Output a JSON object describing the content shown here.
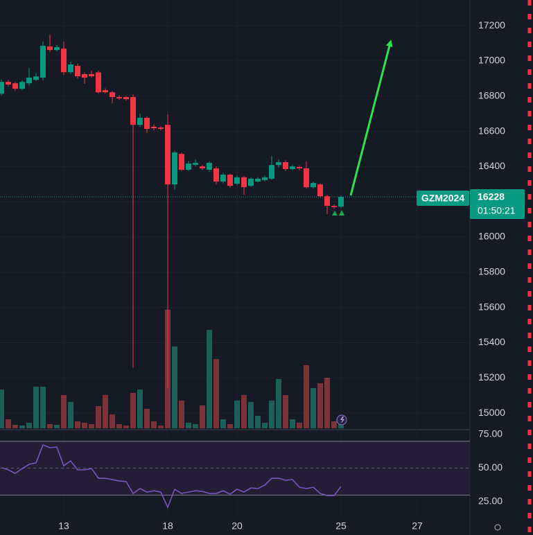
{
  "chart_data": [
    {
      "type": "candlestick",
      "symbol": "GZM2024",
      "last_price": 16228,
      "countdown": "01:50:21",
      "up_color": "#089981",
      "down_color": "#f23645",
      "volume_up_color": "#1d5f59",
      "volume_down_color": "#7c3239",
      "x": [
        0,
        1,
        2,
        3,
        4,
        5,
        6,
        7,
        8,
        9,
        10,
        11,
        12,
        13,
        14,
        15,
        16,
        17,
        18,
        19,
        20,
        21,
        22,
        23,
        24,
        25,
        26,
        27,
        28,
        29,
        30,
        31,
        32,
        33,
        34,
        35,
        36,
        37,
        38,
        39,
        40,
        41,
        42,
        43,
        44,
        45,
        46,
        47,
        48,
        49
      ],
      "open": [
        16814,
        16881,
        16873,
        16842,
        16873,
        16893,
        16905,
        17082,
        17062,
        17070,
        16936,
        16972,
        16925,
        16925,
        16935,
        16834,
        16822,
        16795,
        16795,
        16795,
        16637,
        16677,
        16626,
        16622,
        16637,
        16299,
        16472,
        16382,
        16410,
        16401,
        16382,
        16390,
        16315,
        16354,
        16303,
        16339,
        16291,
        16315,
        16323,
        16331,
        16409,
        16425,
        16386,
        16398,
        16390,
        16283,
        16299,
        16232,
        16177,
        16173
      ],
      "high": [
        16893,
        16890,
        16880,
        16890,
        16960,
        16930,
        17110,
        17150,
        17090,
        17110,
        16995,
        16985,
        16935,
        16945,
        16945,
        16845,
        16830,
        16805,
        16800,
        16810,
        16700,
        16685,
        16640,
        16630,
        16696,
        16490,
        16480,
        16430,
        16440,
        16410,
        16430,
        16400,
        16365,
        16360,
        16350,
        16345,
        16340,
        16340,
        16350,
        16460,
        16440,
        16435,
        16410,
        16405,
        16430,
        16315,
        16305,
        16240,
        16185,
        16235
      ],
      "low": [
        16806,
        16855,
        16830,
        16835,
        16860,
        16885,
        16890,
        17050,
        17055,
        16920,
        16925,
        16900,
        16870,
        16905,
        16815,
        16815,
        16760,
        16780,
        16775,
        15260,
        16625,
        16590,
        16605,
        16605,
        15142,
        16270,
        16375,
        16375,
        16400,
        16380,
        16370,
        16300,
        16305,
        16280,
        16295,
        16240,
        16285,
        16310,
        16315,
        16325,
        16395,
        16375,
        16380,
        16380,
        16275,
        16275,
        16225,
        16130,
        16160,
        16165
      ],
      "close": [
        16881,
        16866,
        16842,
        16881,
        16905,
        16912,
        17086,
        17062,
        17078,
        16936,
        16980,
        16913,
        16905,
        16913,
        16822,
        16822,
        16795,
        16787,
        16783,
        16637,
        16677,
        16614,
        16618,
        16614,
        16299,
        16480,
        16382,
        16417,
        16421,
        16390,
        16421,
        16315,
        16354,
        16291,
        16339,
        16283,
        16331,
        16331,
        16339,
        16409,
        16425,
        16386,
        16401,
        16390,
        16283,
        16307,
        16232,
        16177,
        16170,
        16228
      ],
      "volume": [
        56,
        13,
        5,
        4,
        8,
        60,
        60,
        6,
        5,
        48,
        38,
        10,
        8,
        6,
        32,
        48,
        20,
        6,
        4,
        51,
        56,
        28,
        10,
        4,
        171,
        118,
        40,
        8,
        6,
        33,
        142,
        100,
        13,
        6,
        40,
        48,
        38,
        18,
        8,
        40,
        71,
        48,
        13,
        8,
        91,
        58,
        65,
        73,
        10,
        6
      ],
      "volume_lim": [
        0,
        618
      ],
      "xlim": [
        -0.2,
        67.6
      ],
      "ylim": [
        14914,
        17346
      ],
      "yticks": [
        15000,
        15200,
        15400,
        15600,
        15800,
        16000,
        16200,
        16400,
        16600,
        16800,
        17000,
        17200
      ],
      "grid": true
    },
    {
      "type": "line",
      "color": "#7e57c2",
      "x": [
        0,
        1,
        2,
        3,
        4,
        5,
        6,
        7,
        8,
        9,
        10,
        11,
        12,
        13,
        14,
        15,
        16,
        17,
        18,
        19,
        20,
        21,
        22,
        23,
        24,
        25,
        26,
        27,
        28,
        29,
        30,
        31,
        32,
        33,
        34,
        35,
        36,
        37,
        38,
        39,
        40,
        41,
        42,
        43,
        44,
        45,
        46,
        47,
        48,
        49
      ],
      "values": [
        50.3,
        48.7,
        46.1,
        49.7,
        52.8,
        53.9,
        67.3,
        65.2,
        65.7,
        51.8,
        55.4,
        48.7,
        48.7,
        49.7,
        42.5,
        42.5,
        41.5,
        40.5,
        40.0,
        31.2,
        34.8,
        32.2,
        33.2,
        32.2,
        20.9,
        34.3,
        31.2,
        32.2,
        33.2,
        32.7,
        31.2,
        31.2,
        33.2,
        30.7,
        34.3,
        32.2,
        35.3,
        34.8,
        37.4,
        42.5,
        42.5,
        41.0,
        41.5,
        35.8,
        34.8,
        35.8,
        31.2,
        29.6,
        29.6,
        36.3
      ],
      "upper_band": 70,
      "lower_band": 30,
      "middle_line": 50,
      "xlim": [
        -0.2,
        67.6
      ],
      "ylim": [
        14.2,
        78.6
      ],
      "yticks": [
        {
          "value": 25,
          "label": "25.00"
        },
        {
          "value": 50,
          "label": "50.00"
        },
        {
          "value": 75,
          "label": "75.00"
        }
      ],
      "xticks": [
        {
          "value": 9,
          "label": "13"
        },
        {
          "value": 24,
          "label": "18"
        },
        {
          "value": 34,
          "label": "20"
        },
        {
          "value": 49,
          "label": "25"
        },
        {
          "value": 60,
          "label": "27"
        }
      ]
    }
  ]
}
